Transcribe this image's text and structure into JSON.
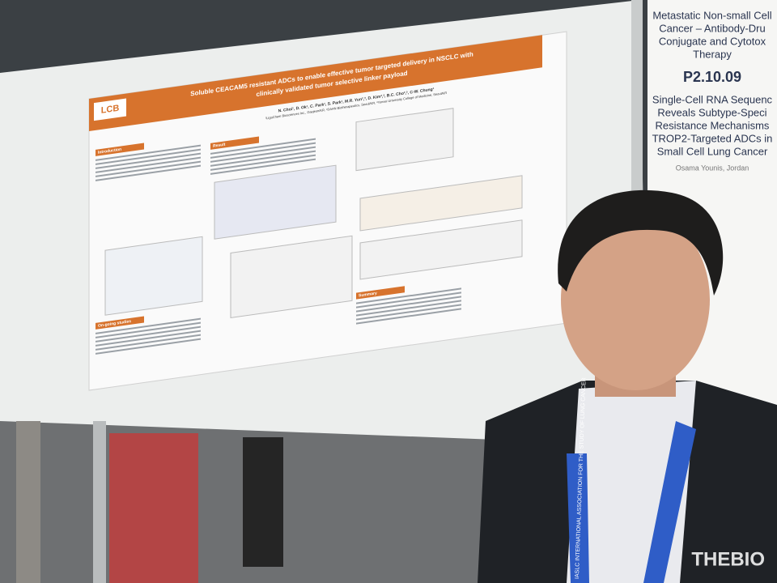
{
  "poster": {
    "logo": "LCB",
    "title_lines": [
      "Soluble CEACAM5 resistant ADCs to enable effective tumor targeted delivery in NSCLC with",
      "clinically validated tumor selective linker payload"
    ],
    "authors": "N. Choi¹, D. Ok¹, C. Park¹, S. Park¹, M.R. Yun²,³, D. Kim²,³, B.C. Cho²,³, C-W. Chung¹",
    "affiliations": "¹LigaChem Biosciences Inc., Daejeon/KR, ²DAAN Biotherapeutics, Seoul/KR, ³Yonsei University College of Medicine, Seoul/KR",
    "sections": [
      "Introduction",
      "Result",
      "On-going studies",
      "Summary"
    ]
  },
  "side_poster": {
    "lines": [
      "Metastatic Non-small Cell",
      "Cancer – Antibody-Dru",
      "Conjugate and Cytotox",
      "Therapy"
    ],
    "code": "P2.10.09",
    "lines2": [
      "Single-Cell RNA Sequenc",
      "Reveals Subtype-Speci",
      "Resistance Mechanisms",
      "TROP2-Targeted ADCs in",
      "Small Cell Lung Cancer"
    ],
    "author": "Osama Younis, Jordan"
  },
  "lanyard": "IASLC INTERNATIONAL ASSOCIATION FOR THE STUDY OF LUNG CANCER",
  "watermark": "THEBIO"
}
